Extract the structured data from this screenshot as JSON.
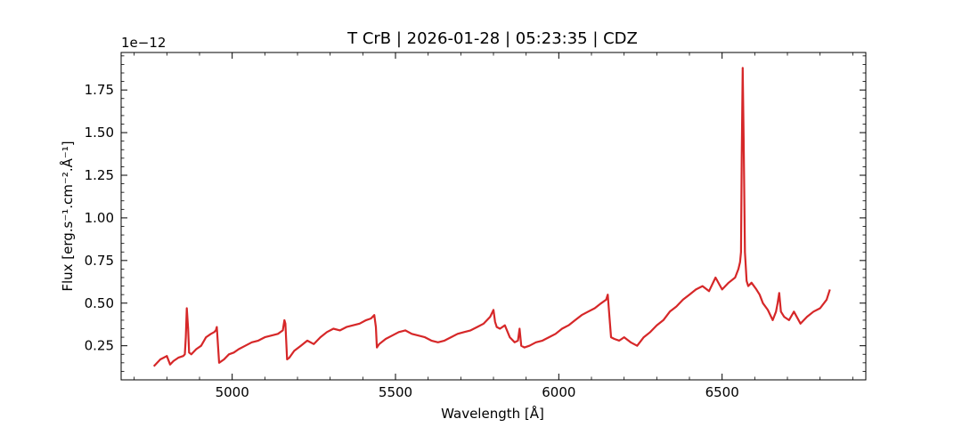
{
  "chart_data": {
    "type": "line",
    "title": "T CrB | 2026-01-28 | 05:23:35 | CDZ",
    "xlabel": "Wavelength [Å]",
    "ylabel": "Flux [erg.s⁻¹.cm⁻².Å⁻¹]",
    "offset_text": "1e−12",
    "y_scale_factor": 1e-12,
    "xlim": [
      4660,
      6940
    ],
    "ylim": [
      0.05,
      1.97
    ],
    "x_ticks": [
      5000,
      5500,
      6000,
      6500
    ],
    "x_tick_labels": [
      "5000",
      "5500",
      "6000",
      "6500"
    ],
    "y_ticks": [
      0.25,
      0.5,
      0.75,
      1.0,
      1.25,
      1.5,
      1.75
    ],
    "y_tick_labels": [
      "0.25",
      "0.50",
      "0.75",
      "1.00",
      "1.25",
      "1.50",
      "1.75"
    ],
    "x_minor_step": 100,
    "y_minor_step": 0.05,
    "grid": false,
    "line_color": "#d62728",
    "series": [
      {
        "x": [
          4760,
          4780,
          4790,
          4800,
          4810,
          4820,
          4835,
          4850,
          4855,
          4858,
          4861,
          4865,
          4868,
          4875,
          4890,
          4905,
          4920,
          4935,
          4945,
          4950,
          4953,
          4960,
          4975,
          4990,
          5005,
          5020,
          5040,
          5060,
          5080,
          5100,
          5120,
          5140,
          5155,
          5160,
          5163,
          5168,
          5175,
          5190,
          5210,
          5230,
          5250,
          5270,
          5290,
          5310,
          5330,
          5350,
          5370,
          5390,
          5410,
          5425,
          5435,
          5440,
          5443,
          5450,
          5470,
          5490,
          5510,
          5530,
          5550,
          5570,
          5590,
          5610,
          5630,
          5650,
          5670,
          5690,
          5710,
          5730,
          5750,
          5770,
          5790,
          5800,
          5805,
          5810,
          5820,
          5835,
          5850,
          5865,
          5875,
          5880,
          5885,
          5895,
          5910,
          5930,
          5950,
          5970,
          5990,
          6010,
          6030,
          6050,
          6070,
          6090,
          6110,
          6130,
          6145,
          6150,
          6155,
          6160,
          6170,
          6185,
          6200,
          6220,
          6240,
          6260,
          6280,
          6300,
          6320,
          6340,
          6360,
          6380,
          6400,
          6420,
          6440,
          6460,
          6480,
          6500,
          6520,
          6540,
          6550,
          6555,
          6558,
          6560,
          6563,
          6566,
          6570,
          6575,
          6580,
          6590,
          6605,
          6615,
          6625,
          6640,
          6655,
          6665,
          6670,
          6675,
          6680,
          6690,
          6705,
          6720,
          6740,
          6760,
          6780,
          6800,
          6820,
          6830
        ],
        "y": [
          0.13,
          0.17,
          0.18,
          0.19,
          0.14,
          0.16,
          0.18,
          0.19,
          0.2,
          0.3,
          0.47,
          0.35,
          0.21,
          0.2,
          0.23,
          0.25,
          0.3,
          0.32,
          0.33,
          0.34,
          0.36,
          0.15,
          0.17,
          0.2,
          0.21,
          0.23,
          0.25,
          0.27,
          0.28,
          0.3,
          0.31,
          0.32,
          0.34,
          0.4,
          0.38,
          0.17,
          0.18,
          0.22,
          0.25,
          0.28,
          0.26,
          0.3,
          0.33,
          0.35,
          0.34,
          0.36,
          0.37,
          0.38,
          0.4,
          0.41,
          0.43,
          0.36,
          0.24,
          0.26,
          0.29,
          0.31,
          0.33,
          0.34,
          0.32,
          0.31,
          0.3,
          0.28,
          0.27,
          0.28,
          0.3,
          0.32,
          0.33,
          0.34,
          0.36,
          0.38,
          0.42,
          0.46,
          0.39,
          0.36,
          0.35,
          0.37,
          0.3,
          0.27,
          0.28,
          0.35,
          0.25,
          0.24,
          0.25,
          0.27,
          0.28,
          0.3,
          0.32,
          0.35,
          0.37,
          0.4,
          0.43,
          0.45,
          0.47,
          0.5,
          0.52,
          0.55,
          0.42,
          0.3,
          0.29,
          0.28,
          0.3,
          0.27,
          0.25,
          0.3,
          0.33,
          0.37,
          0.4,
          0.45,
          0.48,
          0.52,
          0.55,
          0.58,
          0.6,
          0.57,
          0.65,
          0.58,
          0.62,
          0.65,
          0.7,
          0.74,
          0.8,
          1.35,
          1.88,
          1.45,
          0.8,
          0.63,
          0.6,
          0.62,
          0.58,
          0.55,
          0.5,
          0.46,
          0.4,
          0.45,
          0.5,
          0.56,
          0.45,
          0.42,
          0.4,
          0.45,
          0.38,
          0.42,
          0.45,
          0.47,
          0.52,
          0.58
        ]
      }
    ]
  }
}
